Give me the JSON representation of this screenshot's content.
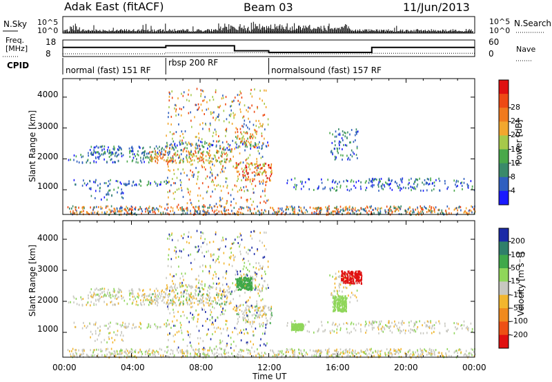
{
  "header": {
    "station": "Adak East (fitACF)",
    "beam": "Beam 03",
    "date": "11/Jun/2013"
  },
  "nsky": {
    "label": "N.Sky",
    "ticks": [
      "10^5",
      "10^0"
    ],
    "right_ticks": [
      "10^5",
      "10^0"
    ],
    "right_label": "N.Search"
  },
  "freq": {
    "label_line1": "Freq.",
    "label_line2": "[MHz]",
    "ticks": [
      "18",
      "8"
    ],
    "right_ticks": [
      "60",
      "0"
    ],
    "right_label": "Nave",
    "freq_series": [
      {
        "t": 0,
        "v": 13.5
      },
      {
        "t": 6,
        "v": 13.5
      },
      {
        "t": 6,
        "v": 14.5
      },
      {
        "t": 10,
        "v": 14.5
      },
      {
        "t": 10,
        "v": 11.5
      },
      {
        "t": 12,
        "v": 11.5
      },
      {
        "t": 12,
        "v": 10.5
      },
      {
        "t": 18,
        "v": 10.5
      },
      {
        "t": 18,
        "v": 13.5
      },
      {
        "t": 24,
        "v": 13.5
      }
    ],
    "nave_series": [
      {
        "t": 0,
        "v": 10
      },
      {
        "t": 6,
        "v": 10
      },
      {
        "t": 6,
        "v": 13
      },
      {
        "t": 10,
        "v": 13
      },
      {
        "t": 10,
        "v": 14
      },
      {
        "t": 12,
        "v": 14
      },
      {
        "t": 12,
        "v": 10
      },
      {
        "t": 18,
        "v": 10
      },
      {
        "t": 18,
        "v": 12
      },
      {
        "t": 24,
        "v": 12
      }
    ]
  },
  "cpid": {
    "label": "CPID",
    "segments": [
      {
        "start": 0,
        "end": 6,
        "text": "normal (fast) 151 RF"
      },
      {
        "start": 6,
        "end": 12,
        "text": "rbsp 200 RF"
      },
      {
        "start": 12,
        "end": 24,
        "text": "normalsound (fast) 157 RF"
      }
    ]
  },
  "chart_data": [
    {
      "type": "heatmap",
      "name": "power",
      "ylabel": "Slant Range [km]",
      "y_ticks": [
        1000,
        2000,
        3000,
        4000
      ],
      "ylim": [
        200,
        4600
      ],
      "xlim": [
        0,
        24
      ],
      "colorbar_label": "Power [dB]",
      "colorbar_ticks": [
        "4",
        "8",
        "12",
        "16",
        "20",
        "24",
        "28"
      ],
      "colorbar_colors": [
        "#1a1aff",
        "#2f5fbf",
        "#3a8a6a",
        "#49a84a",
        "#a6c94a",
        "#f2a72e",
        "#f07a1e",
        "#ee4a14",
        "#e01010"
      ]
    },
    {
      "type": "heatmap",
      "name": "velocity",
      "ylabel": "Slant Range [km]",
      "xlabel": "Time UT",
      "y_ticks": [
        1000,
        2000,
        3000,
        4000
      ],
      "ylim": [
        200,
        4600
      ],
      "xlim": [
        0,
        24
      ],
      "x_ticks": [
        "00:00",
        "04:00",
        "08:00",
        "12:00",
        "16:00",
        "20:00",
        "00:00"
      ],
      "colorbar_label": "Velocity [m s⁻¹]",
      "colorbar_ticks": [
        "200",
        "100",
        "50",
        "15",
        "-15",
        "-50",
        "-100",
        "-200"
      ],
      "colorbar_colors": [
        "#1a2aa6",
        "#2f7f6a",
        "#3fa84a",
        "#8fd65a",
        "#c8c8c0",
        "#f2b62e",
        "#f08a1e",
        "#ee5014",
        "#e01010"
      ]
    }
  ],
  "colors": {
    "white": "#ffffff",
    "ground": "#c8c8c0"
  }
}
